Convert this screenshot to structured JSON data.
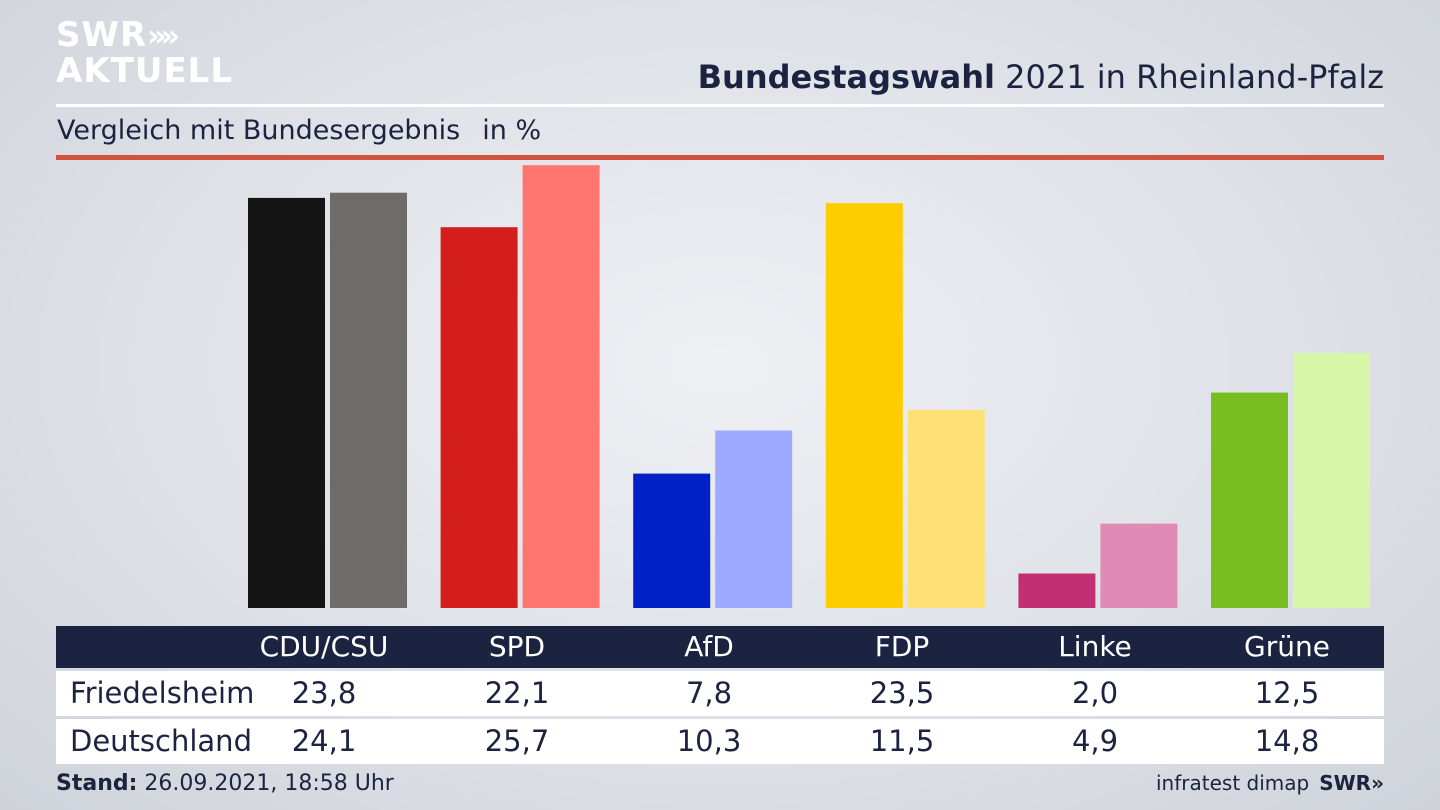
{
  "header": {
    "logo_line1": "SWR",
    "logo_arrows": "»",
    "logo_line2": "AKTUELL",
    "title_bold": "Bundestagswahl",
    "title_rest": "2021 in Rheinland-Pfalz",
    "subtitle": "Vergleich mit Bundesergebnis",
    "unit": "in %"
  },
  "chart_data": {
    "type": "bar",
    "categories": [
      "CDU/CSU",
      "SPD",
      "AfD",
      "FDP",
      "Linke",
      "Grüne"
    ],
    "series": [
      {
        "name": "Friedelsheim",
        "values": [
          23.8,
          22.1,
          7.8,
          23.5,
          2.0,
          12.5
        ],
        "labels": [
          "23,8",
          "22,1",
          "7,8",
          "23,5",
          "2,0",
          "12,5"
        ]
      },
      {
        "name": "Deutschland",
        "values": [
          24.1,
          25.7,
          10.3,
          11.5,
          4.9,
          14.8
        ],
        "labels": [
          "24,1",
          "25,7",
          "10,3",
          "11,5",
          "4,9",
          "14,8"
        ]
      }
    ],
    "colors": {
      "Friedelsheim": [
        "#141414",
        "#d41e1e",
        "#0021c8",
        "#ffcc00",
        "#c23073",
        "#78be20"
      ],
      "Deutschland": [
        "#6e6c6a",
        "#ff7670",
        "#9eaaff",
        "#fee075",
        "#e08ab6",
        "#d6f6a8"
      ]
    },
    "ylim": [
      0,
      26
    ]
  },
  "footer": {
    "stand_label": "Stand:",
    "stand_value": "26.09.2021, 18:58 Uhr",
    "source": "infratest dimap",
    "brand": "SWR»"
  }
}
